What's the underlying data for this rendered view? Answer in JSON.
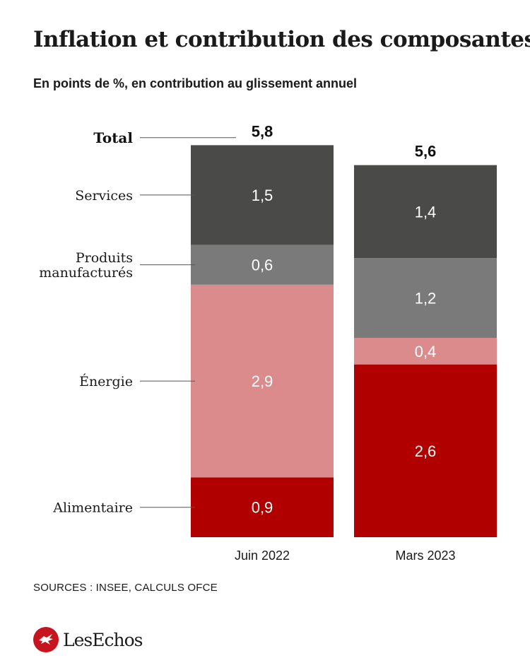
{
  "header": {
    "title": "Inflation et contribution des composantes",
    "subtitle": "En points de %, en contribution au glissement annuel"
  },
  "footer": {
    "sources": "SOURCES : INSEE,  CALCULS OFCE",
    "brand": "LesEchos",
    "brand_color": "#c8141e"
  },
  "chart_data": {
    "type": "bar",
    "stacked": true,
    "title": "Inflation et contribution des composantes",
    "subtitle": "En points de %, en contribution au glissement annuel",
    "categories": [
      "Juin 2022",
      "Mars 2023"
    ],
    "total_label": "Total",
    "totals": [
      5.8,
      5.6
    ],
    "total_display": [
      "5,8",
      "5,6"
    ],
    "series": [
      {
        "name": "Alimentaire",
        "values": [
          0.9,
          2.6
        ],
        "display": [
          "0,9",
          "2,6"
        ],
        "color": "#b00000"
      },
      {
        "name": "Énergie",
        "values": [
          2.9,
          0.4
        ],
        "display": [
          "2,9",
          "0,4"
        ],
        "color": "#db8b8c"
      },
      {
        "name": "Produits manufacturés",
        "name_lines": [
          "Produits",
          "manufacturés"
        ],
        "values": [
          0.6,
          1.2
        ],
        "display": [
          "0,6",
          "1,2"
        ],
        "color": "#7a7a7a"
      },
      {
        "name": "Services",
        "values": [
          1.5,
          1.4
        ],
        "display": [
          "1,5",
          "1,4"
        ],
        "color": "#4a4a48"
      }
    ],
    "legend": "left-side labels",
    "grid": false
  }
}
